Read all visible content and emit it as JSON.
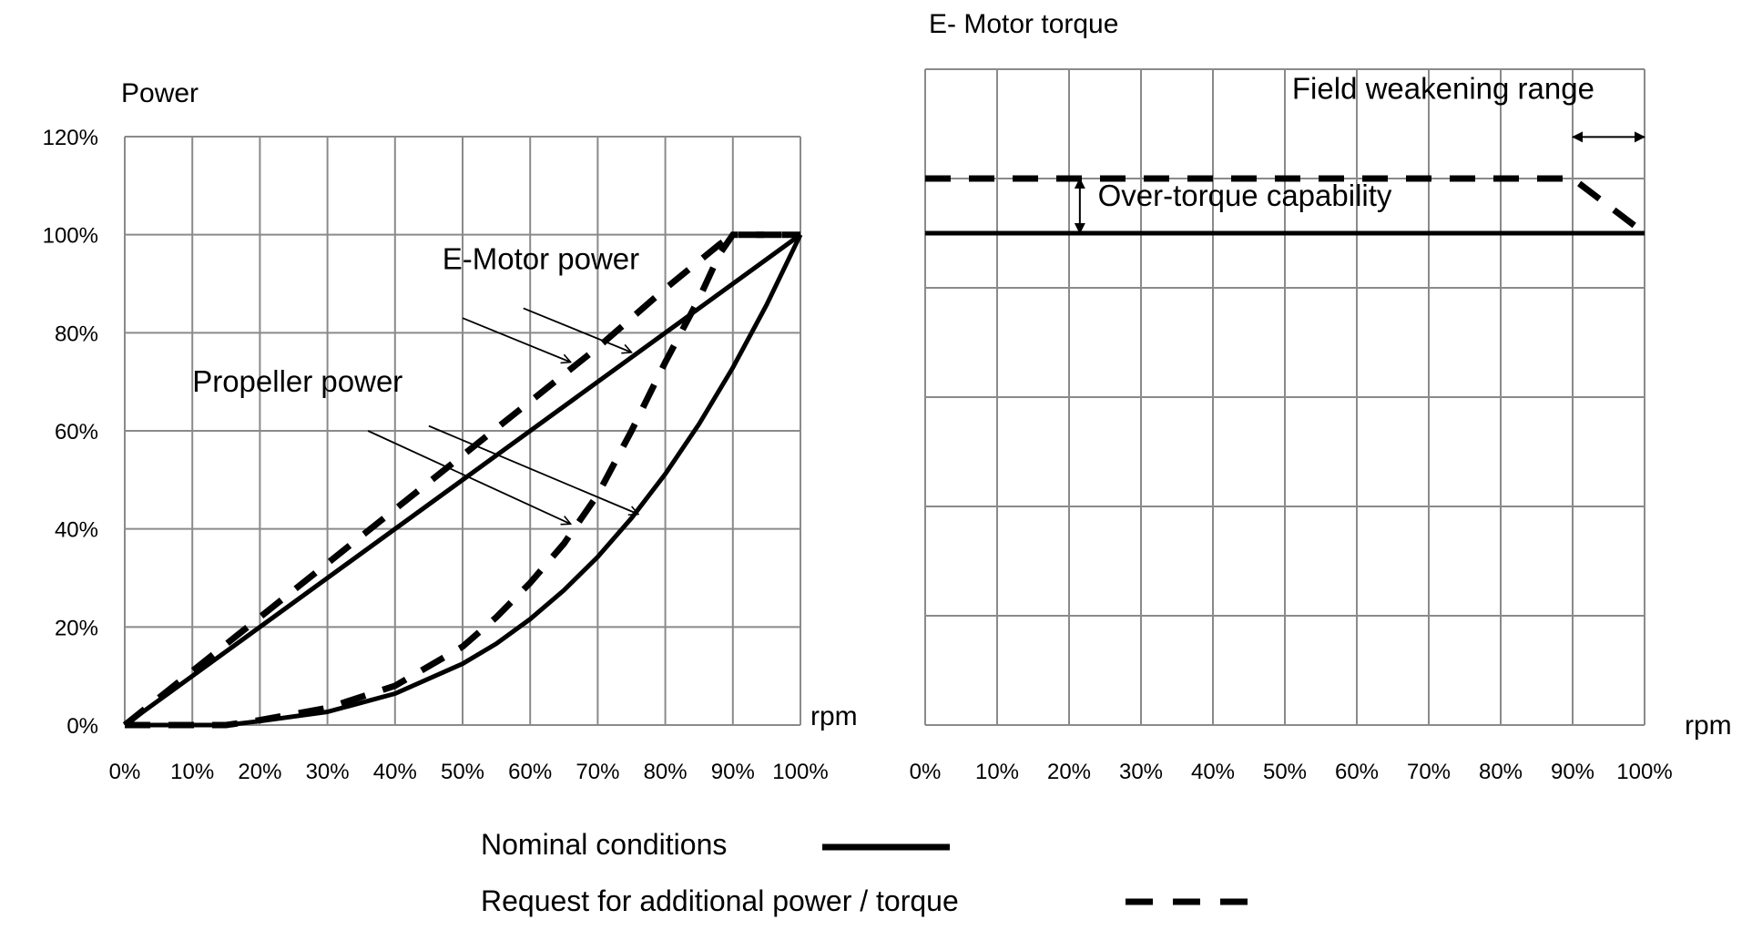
{
  "chart_data": [
    {
      "id": "power",
      "type": "line",
      "title": "",
      "ylabel": "Power",
      "xlabel": "rpm",
      "xlim": [
        0,
        100
      ],
      "ylim": [
        0,
        120
      ],
      "x_ticks": [
        "0%",
        "10%",
        "20%",
        "30%",
        "40%",
        "50%",
        "60%",
        "70%",
        "80%",
        "90%",
        "100%"
      ],
      "y_ticks": [
        "0%",
        "20%",
        "40%",
        "60%",
        "80%",
        "100%",
        "120%"
      ],
      "grid": true,
      "series": [
        {
          "group": "emotor",
          "style": "solid",
          "x": [
            0,
            100
          ],
          "y": [
            0,
            100
          ]
        },
        {
          "group": "emotor",
          "style": "dashed",
          "x": [
            0,
            10,
            20,
            30,
            40,
            50,
            60,
            70,
            80,
            88,
            90,
            100
          ],
          "y": [
            0,
            11,
            22,
            33,
            44,
            55,
            66,
            77,
            89,
            98,
            100,
            100
          ]
        },
        {
          "group": "propeller",
          "style": "solid",
          "x": [
            0,
            15,
            20,
            30,
            40,
            50,
            55,
            60,
            65,
            70,
            75,
            80,
            85,
            90,
            95,
            100
          ],
          "y": [
            0,
            0,
            0.8,
            2.7,
            6.4,
            12.5,
            16.6,
            21.6,
            27.5,
            34.3,
            42.2,
            51.2,
            61.4,
            72.9,
            85.7,
            100
          ]
        },
        {
          "group": "propeller",
          "style": "dashed",
          "x": [
            0,
            15,
            20,
            30,
            40,
            50,
            55,
            60,
            65,
            70,
            75,
            80,
            85,
            88,
            90,
            100
          ],
          "y": [
            0,
            0,
            1,
            3.5,
            8,
            16,
            22,
            29,
            37,
            47,
            60,
            74,
            87,
            96,
            100,
            100
          ]
        }
      ],
      "annotations": [
        {
          "text": "E-Motor power",
          "x": 47,
          "y": 93,
          "arrows": [
            {
              "from": [
                50,
                83
              ],
              "to": [
                66,
                74
              ]
            },
            {
              "from": [
                59,
                85
              ],
              "to": [
                75,
                76
              ]
            }
          ]
        },
        {
          "text": "Propeller power",
          "x": 10,
          "y": 68,
          "arrows": [
            {
              "from": [
                36,
                60
              ],
              "to": [
                66,
                41
              ]
            },
            {
              "from": [
                45,
                61
              ],
              "to": [
                76,
                43
              ]
            }
          ]
        }
      ]
    },
    {
      "id": "torque",
      "type": "line",
      "title": "E- Motor torque",
      "ylabel": "",
      "xlabel": "rpm",
      "xlim": [
        0,
        100
      ],
      "ylim": [
        0,
        6
      ],
      "x_ticks": [
        "0%",
        "10%",
        "20%",
        "30%",
        "40%",
        "50%",
        "60%",
        "70%",
        "80%",
        "90%",
        "100%"
      ],
      "grid": true,
      "series": [
        {
          "style": "solid",
          "x": [
            0,
            100
          ],
          "y": [
            4.5,
            4.5
          ]
        },
        {
          "style": "dashed",
          "x": [
            0,
            90,
            100
          ],
          "y": [
            5.0,
            5.0,
            4.5
          ]
        }
      ],
      "annotations": [
        {
          "text": "Field weakening range",
          "x": 51,
          "y": 5.73,
          "span": [
            90,
            100
          ],
          "span_y": 5.38
        },
        {
          "text": "Over-torque capability",
          "x": 24,
          "y": 4.75,
          "span_x": 21.5,
          "span": [
            4.5,
            5.0
          ]
        }
      ]
    }
  ],
  "legend": {
    "placement": "bottom",
    "items": [
      {
        "label": "Nominal conditions",
        "style": "solid"
      },
      {
        "label": "Request for additional power / torque",
        "style": "dashed"
      }
    ]
  }
}
